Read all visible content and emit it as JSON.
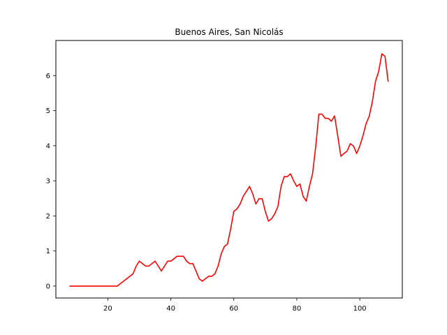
{
  "chart_data": {
    "type": "line",
    "title": "Buenos Aires, San Nicolás",
    "xlabel": "",
    "ylabel": "",
    "xlim": [
      3.5,
      113.5
    ],
    "ylim": [
      -0.34,
      7.0
    ],
    "xticks": [
      20,
      40,
      60,
      80,
      100
    ],
    "yticks": [
      0,
      1,
      2,
      3,
      4,
      5,
      6
    ],
    "grid": false,
    "legend": "none",
    "series": [
      {
        "color": "#ff0000",
        "x": [
          8,
          9,
          10,
          11,
          12,
          13,
          14,
          15,
          16,
          17,
          18,
          19,
          20,
          21,
          22,
          23,
          24,
          25,
          26,
          27,
          28,
          29,
          30,
          31,
          32,
          33,
          34,
          35,
          36,
          37,
          38,
          39,
          40,
          41,
          42,
          43,
          44,
          45,
          46,
          47,
          48,
          49,
          50,
          51,
          52,
          53,
          54,
          55,
          56,
          57,
          58,
          59,
          60,
          61,
          62,
          63,
          64,
          65,
          66,
          67,
          68,
          69,
          70,
          71,
          72,
          73,
          74,
          75,
          76,
          77,
          78,
          79,
          80,
          81,
          82,
          83,
          84,
          85,
          86,
          87,
          88,
          89,
          90,
          91,
          92,
          93,
          94,
          95,
          96,
          97,
          98,
          99,
          100,
          101,
          102,
          103,
          104,
          105,
          106,
          107,
          108,
          109
        ],
        "y": [
          0,
          0,
          0,
          0,
          0,
          0,
          0,
          0,
          0,
          0,
          0,
          0,
          0,
          0,
          0,
          0,
          0.07,
          0.14,
          0.21,
          0.28,
          0.35,
          0.57,
          0.71,
          0.64,
          0.57,
          0.57,
          0.64,
          0.71,
          0.57,
          0.43,
          0.57,
          0.71,
          0.71,
          0.78,
          0.85,
          0.85,
          0.85,
          0.71,
          0.64,
          0.64,
          0.43,
          0.21,
          0.14,
          0.21,
          0.28,
          0.28,
          0.35,
          0.57,
          0.92,
          1.13,
          1.2,
          1.63,
          2.13,
          2.2,
          2.34,
          2.56,
          2.7,
          2.84,
          2.63,
          2.34,
          2.49,
          2.49,
          2.13,
          1.85,
          1.92,
          2.06,
          2.27,
          2.84,
          3.12,
          3.12,
          3.2,
          3.0,
          2.84,
          2.91,
          2.56,
          2.42,
          2.84,
          3.2,
          3.97,
          4.9,
          4.9,
          4.78,
          4.78,
          4.7,
          4.85,
          4.28,
          3.7,
          3.78,
          3.85,
          4.06,
          3.99,
          3.78,
          3.99,
          4.28,
          4.63,
          4.84,
          5.26,
          5.84,
          6.12,
          6.62,
          6.55,
          5.84
        ]
      }
    ]
  }
}
